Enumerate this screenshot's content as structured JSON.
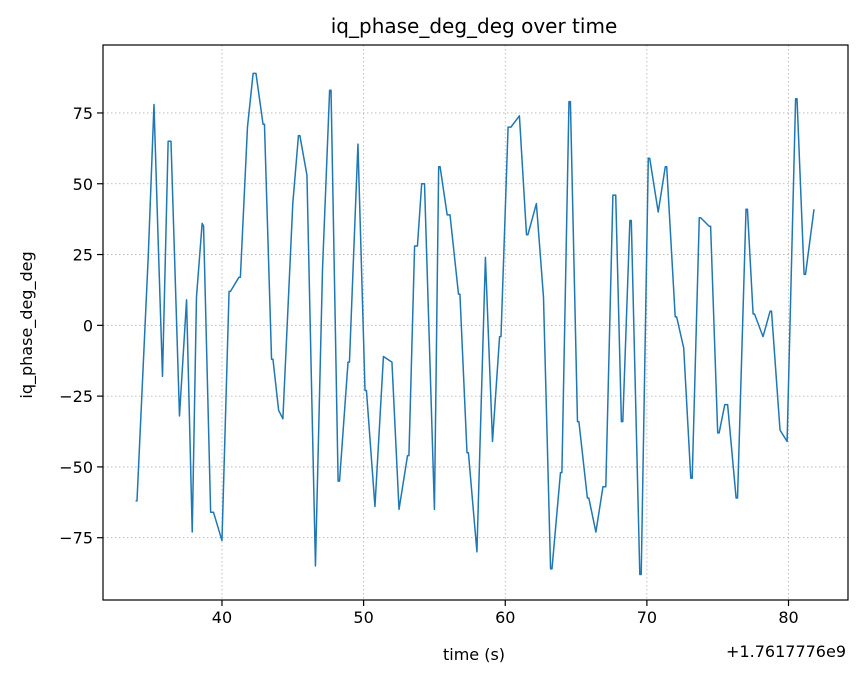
{
  "chart_data": {
    "type": "line",
    "title": "iq_phase_deg_deg over time",
    "xlabel": "time (s)",
    "ylabel": "iq_phase_deg_deg",
    "x_offset_label": "+1.7617776e9",
    "xlim": [
      31.6,
      84.2
    ],
    "ylim": [
      -97,
      99
    ],
    "xticks": [
      40,
      50,
      60,
      70,
      80
    ],
    "yticks": [
      -75,
      -50,
      -25,
      0,
      25,
      50,
      75
    ],
    "grid": true,
    "line_color": "#1f77b4",
    "series": [
      {
        "x": [
          33.9,
          34.0,
          34.8,
          35.2,
          35.5,
          35.8,
          36.2,
          36.4,
          37.0,
          37.5,
          37.9,
          38.2,
          38.6,
          38.7,
          39.2,
          39.4,
          40.0,
          40.5,
          40.6,
          41.2,
          41.3,
          41.8,
          42.2,
          42.4,
          42.9,
          43.0,
          43.5,
          43.6,
          44.0,
          44.3,
          45.0,
          45.4,
          45.5,
          46.0,
          46.6,
          47.1,
          47.6,
          47.7,
          48.2,
          48.3,
          48.9,
          49.0,
          49.6,
          50.1,
          50.2,
          50.8,
          51.4,
          52.0,
          52.5,
          53.1,
          53.2,
          53.6,
          53.8,
          54.1,
          54.3,
          55.0,
          55.3,
          55.4,
          55.9,
          56.1,
          56.7,
          56.8,
          57.3,
          57.4,
          58.0,
          58.6,
          59.1,
          59.6,
          59.7,
          60.2,
          60.4,
          61.0,
          61.5,
          61.6,
          62.2,
          62.7,
          63.2,
          63.3,
          63.9,
          64.0,
          64.5,
          64.6,
          65.1,
          65.2,
          65.8,
          65.9,
          66.4,
          66.9,
          67.1,
          67.6,
          67.8,
          68.2,
          68.3,
          68.8,
          68.9,
          69.5,
          69.6,
          70.1,
          70.2,
          70.8,
          71.3,
          71.4,
          72.0,
          72.1,
          72.6,
          73.1,
          73.2,
          73.7,
          73.8,
          74.4,
          74.5,
          75.0,
          75.1,
          75.5,
          75.7,
          76.3,
          76.4,
          77.0,
          77.1,
          77.5,
          77.6,
          78.2,
          78.7,
          78.8,
          79.4,
          79.9,
          80.5,
          80.6,
          81.1,
          81.2,
          81.8
        ],
        "y": [
          -62,
          -62,
          25,
          78,
          29,
          -18,
          65,
          65,
          -32,
          9,
          -73,
          10,
          36,
          35,
          -66,
          -66,
          -76,
          12,
          12,
          17,
          17,
          70,
          89,
          89,
          71,
          71,
          -12,
          -12,
          -30,
          -33,
          43,
          67,
          67,
          53,
          -85,
          20,
          83,
          83,
          -55,
          -55,
          -13,
          -13,
          64,
          -23,
          -23,
          -64,
          -11,
          -13,
          -65,
          -46,
          -46,
          28,
          28,
          50,
          50,
          -65,
          56,
          56,
          39,
          39,
          11,
          11,
          -45,
          -45,
          -80,
          24,
          -41,
          -4,
          -4,
          70,
          70,
          74,
          32,
          32,
          43,
          10,
          -86,
          -86,
          -52,
          -52,
          79,
          79,
          -34,
          -34,
          -61,
          -61,
          -73,
          -57,
          -57,
          46,
          46,
          -34,
          -34,
          37,
          37,
          -88,
          -88,
          59,
          59,
          40,
          56,
          56,
          3,
          3,
          -8,
          -54,
          -54,
          38,
          38,
          35,
          35,
          -38,
          -38,
          -28,
          -28,
          -61,
          -61,
          41,
          41,
          4,
          4,
          -4,
          5,
          5,
          -37,
          -41,
          80,
          80,
          18,
          18,
          41
        ]
      }
    ]
  }
}
